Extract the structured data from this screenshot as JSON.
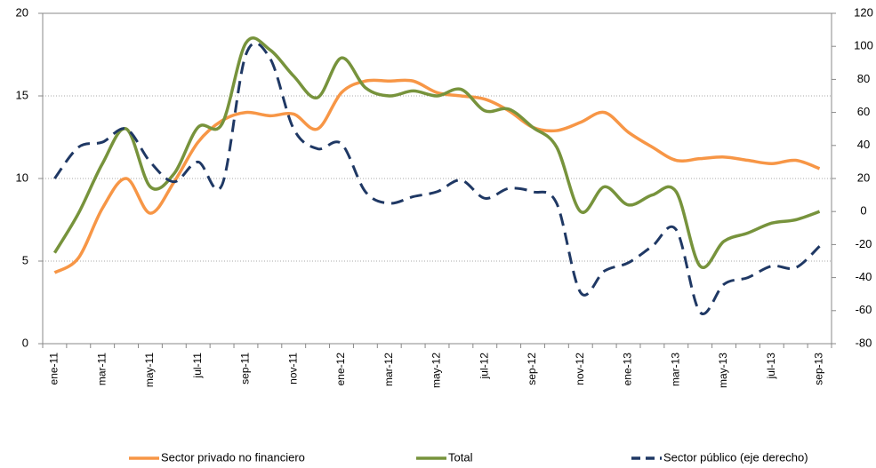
{
  "chart_data": {
    "type": "line",
    "categories": [
      "ene-11",
      null,
      "mar-11",
      null,
      "may-11",
      null,
      "jul-11",
      null,
      "sep-11",
      null,
      "nov-11",
      null,
      "ene-12",
      null,
      "mar-12",
      null,
      "may-12",
      null,
      "jul-12",
      null,
      "sep-12",
      null,
      "nov-12",
      null,
      "ene-13",
      null,
      "mar-13",
      null,
      "may-13",
      null,
      "jul-13",
      null,
      "sep-13"
    ],
    "series": [
      {
        "name": "Sector privado no financiero",
        "color": "#f79646",
        "dash": false,
        "values": [
          4.3,
          5.2,
          8.2,
          10.0,
          7.9,
          9.8,
          12.2,
          13.5,
          14.0,
          13.8,
          13.9,
          13.0,
          15.2,
          15.9,
          15.9,
          15.9,
          15.2,
          15.0,
          14.8,
          14.1,
          13.1,
          12.9,
          13.4,
          14.0,
          12.8,
          11.9,
          11.1,
          11.2,
          11.3,
          11.1,
          10.9,
          11.1,
          10.6
        ]
      },
      {
        "name": "Total",
        "color": "#77933c",
        "dash": false,
        "values": [
          5.5,
          7.9,
          10.9,
          13.0,
          9.5,
          10.3,
          13.1,
          13.3,
          18.2,
          17.8,
          16.2,
          14.9,
          17.3,
          15.5,
          15.0,
          15.3,
          15.0,
          15.4,
          14.1,
          14.2,
          13.1,
          11.9,
          8.0,
          9.5,
          8.4,
          9.0,
          9.2,
          4.7,
          6.2,
          6.7,
          7.3,
          7.5,
          8.0
        ]
      },
      {
        "name": "Sector público (eje derecho)",
        "color": "#1f3864",
        "dash": true,
        "axis": "y2",
        "values": [
          20,
          39,
          42,
          50,
          30,
          18,
          30,
          16,
          95,
          93,
          50,
          38,
          41,
          12,
          5,
          9,
          12,
          19,
          8,
          14,
          12,
          5,
          -49,
          -36,
          -31,
          -21,
          -11,
          -61,
          -44,
          -40,
          -33,
          -34,
          -21
        ]
      }
    ],
    "ylim": [
      0,
      20
    ],
    "yticks": [
      0,
      5,
      10,
      15,
      20
    ],
    "y2lim": [
      -80,
      120
    ],
    "y2ticks": [
      -80,
      -60,
      -40,
      -20,
      0,
      20,
      40,
      60,
      80,
      100,
      120
    ],
    "grid": true,
    "legend": "bottom"
  }
}
